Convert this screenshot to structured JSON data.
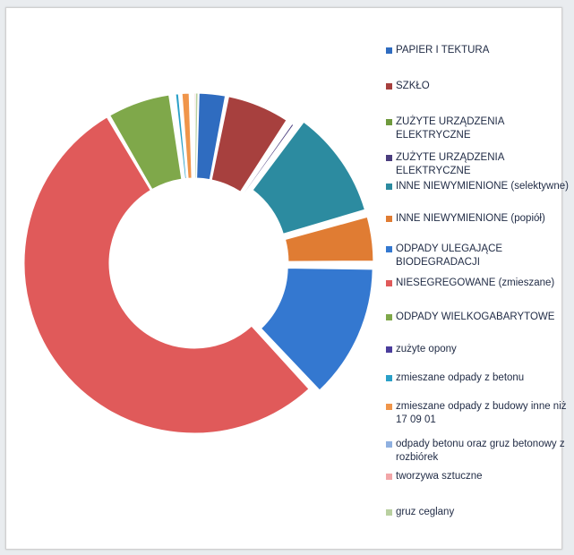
{
  "chart_data": {
    "type": "pie",
    "donut": true,
    "legend_position": "right",
    "slices": [
      {
        "label": "PAPIER I TEKTURA",
        "value": 2.8,
        "color": "#2f6cc0"
      },
      {
        "label": "SZKŁO",
        "value": 6.2,
        "color": "#a7403e"
      },
      {
        "label": "ZUŻYTE URZĄDZENIA ELEKTRYCZNE",
        "value": 0.3,
        "color": "#6f9a3e"
      },
      {
        "label": "ZUŻYTE URZĄDZENIA ELEKTRYCZNE",
        "value": 0.5,
        "color": "#4a3d7e"
      },
      {
        "label": "INNE NIEWYMIENIONE (selektywne)",
        "value": 10.5,
        "color": "#2c8ba0"
      },
      {
        "label": "INNE NIEWYMIENIONE (popiół)",
        "value": 4.5,
        "color": "#e07c33"
      },
      {
        "label": "ODPADY ULEGAJĄCE BIODEGRADACJI",
        "value": 13.0,
        "color": "#3478d0"
      },
      {
        "label": "NIESEGREGOWANE (zmieszane)",
        "value": 53.5,
        "color": "#e05a5a"
      },
      {
        "label": "ODPADY WIELKOGABARYTOWE",
        "value": 6.2,
        "color": "#7fa84a"
      },
      {
        "label": "zużyte opony",
        "value": 0.3,
        "color": "#4b3d9c"
      },
      {
        "label": "zmieszane odpady z betonu",
        "value": 0.6,
        "color": "#2aa0c8"
      },
      {
        "label": "zmieszane odpady z budowy inne niż 17 09 01",
        "value": 1.0,
        "color": "#f0954a"
      },
      {
        "label": "odpady betonu oraz gruz betonowy z rozbiórek",
        "value": 0.3,
        "color": "#8fb0e0"
      },
      {
        "label": "tworzywa sztuczne",
        "value": 0.2,
        "color": "#f2a6a8"
      },
      {
        "label": "gruz ceglany",
        "value": 0.1,
        "color": "#b9d0a0"
      }
    ]
  }
}
